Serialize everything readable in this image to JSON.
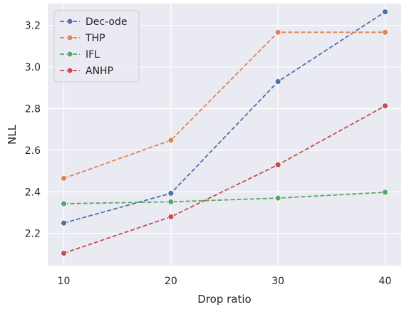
{
  "chart_data": {
    "type": "line",
    "title": "",
    "xlabel": "Drop ratio",
    "ylabel": "NLL",
    "x": [
      10,
      20,
      30,
      40
    ],
    "xticks": [
      "10",
      "20",
      "30",
      "40"
    ],
    "yticks": [
      "2.2",
      "2.4",
      "2.6",
      "2.8",
      "3.0",
      "3.2"
    ],
    "xlim": [
      8.5,
      41.5
    ],
    "ylim": [
      2.045,
      3.305
    ],
    "grid": true,
    "legend_position": "top-left",
    "series": [
      {
        "name": "Dec-ode",
        "color": "#4c72b0",
        "values": [
          2.25,
          2.393,
          2.93,
          3.265
        ]
      },
      {
        "name": "THP",
        "color": "#dd8452",
        "values": [
          2.465,
          2.648,
          3.167,
          3.167
        ]
      },
      {
        "name": "IFL",
        "color": "#55a868",
        "values": [
          2.343,
          2.352,
          2.37,
          2.398
        ]
      },
      {
        "name": "ANHP",
        "color": "#c44e52",
        "values": [
          2.105,
          2.28,
          2.53,
          2.813
        ]
      }
    ]
  },
  "style": {
    "plot_background": "#eaeaf2",
    "grid_color": "#ffffff"
  }
}
